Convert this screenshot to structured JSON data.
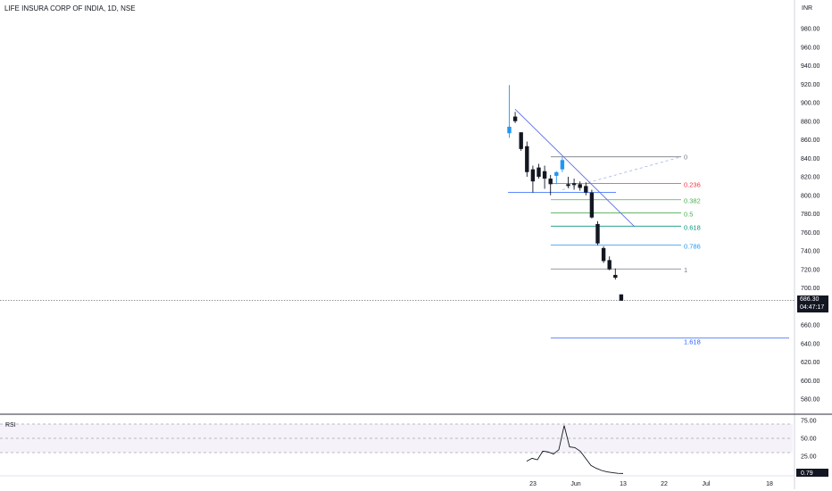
{
  "header": {
    "title": "LIFE INSURA CORP OF INDIA, 1D, NSE"
  },
  "price_axis": {
    "currency": "INR",
    "ticks": [
      "980.00",
      "960.00",
      "940.00",
      "920.00",
      "900.00",
      "880.00",
      "860.00",
      "840.00",
      "820.00",
      "800.00",
      "780.00",
      "760.00",
      "740.00",
      "720.00",
      "700.00",
      "660.00",
      "640.00",
      "620.00",
      "600.00",
      "580.00"
    ]
  },
  "current_price": {
    "value": "686.30",
    "countdown": "04:47:17"
  },
  "rsi": {
    "label": "RSI",
    "ticks": [
      "75.00",
      "50.00",
      "25.00"
    ],
    "current": "0.79"
  },
  "time_axis": {
    "ticks": [
      "23",
      "Jun",
      "13",
      "22",
      "Jul",
      "18"
    ]
  },
  "colors": {
    "candle": "#131722",
    "up_candle": "#2196f3",
    "trendline": "#5b6fe0",
    "fib_0": "#787b86",
    "fib_0236": "#f23645",
    "fib_0382": "#4caf50",
    "fib_05": "#4caf50",
    "fib_0618": "#089981",
    "fib_0786": "#2196f3",
    "fib_1": "#787b86",
    "fib_1618": "#2962ff",
    "rsi_band": "#7e57c2"
  },
  "chart_data": {
    "type": "candlestick",
    "title": "LIFE INSURA CORP OF INDIA, 1D, NSE",
    "yunit": "INR",
    "ylim": [
      570,
      995
    ],
    "candles": [
      {
        "o": 867,
        "h": 919,
        "l": 862,
        "c": 874
      },
      {
        "o": 885,
        "h": 890,
        "l": 878,
        "c": 880
      },
      {
        "o": 868,
        "h": 868,
        "l": 848,
        "c": 850
      },
      {
        "o": 853,
        "h": 858,
        "l": 820,
        "c": 825
      },
      {
        "o": 828,
        "h": 832,
        "l": 803,
        "c": 815
      },
      {
        "o": 830,
        "h": 834,
        "l": 818,
        "c": 820
      },
      {
        "o": 826,
        "h": 832,
        "l": 807,
        "c": 818
      },
      {
        "o": 818,
        "h": 822,
        "l": 800,
        "c": 812
      },
      {
        "o": 821,
        "h": 826,
        "l": 812,
        "c": 825
      },
      {
        "o": 828,
        "h": 841,
        "l": 825,
        "c": 838
      },
      {
        "o": 812,
        "h": 820,
        "l": 808,
        "c": 810
      },
      {
        "o": 813,
        "h": 818,
        "l": 806,
        "c": 811
      },
      {
        "o": 812,
        "h": 815,
        "l": 805,
        "c": 808
      },
      {
        "o": 810,
        "h": 814,
        "l": 800,
        "c": 803
      },
      {
        "o": 803,
        "h": 806,
        "l": 775,
        "c": 776
      },
      {
        "o": 769,
        "h": 772,
        "l": 746,
        "c": 748
      },
      {
        "o": 743,
        "h": 745,
        "l": 727,
        "c": 729
      },
      {
        "o": 730,
        "h": 734,
        "l": 719,
        "c": 720
      },
      {
        "o": 714,
        "h": 721,
        "l": 709,
        "c": 711
      },
      {
        "o": 693,
        "h": 693,
        "l": 686,
        "c": 686.3
      }
    ],
    "fibonacci": [
      {
        "level": "0",
        "price": 841.5
      },
      {
        "level": "0.236",
        "price": 812.8
      },
      {
        "level": "0.382",
        "price": 795.2
      },
      {
        "level": "0.5",
        "price": 780.9
      },
      {
        "level": "0.618",
        "price": 766.7
      },
      {
        "level": "0.786",
        "price": 746.4
      },
      {
        "level": "1",
        "price": 720.5
      },
      {
        "level": "1.618",
        "price": 645.8
      }
    ],
    "rsi_values": [
      18,
      22,
      20,
      32,
      31,
      28,
      34,
      68,
      38,
      37,
      32,
      22,
      12,
      8,
      5,
      3,
      2,
      1,
      0.79
    ],
    "rsi_ylim": [
      0,
      80
    ],
    "rsi_bands": [
      30,
      70
    ]
  }
}
